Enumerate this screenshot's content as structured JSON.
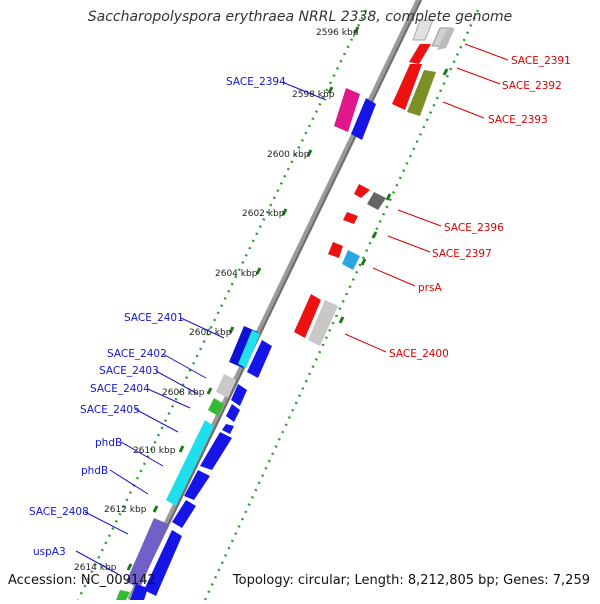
{
  "title": "Saccharopolyspora erythraea NRRL 2338, complete genome",
  "footer": {
    "accession": "Accession: NC_009142",
    "summary": "Topology: circular; Length: 8,212,805 bp; Genes: 7,259"
  },
  "colors": {
    "backbone": "#7a7a7a",
    "dots": "#2e9e2e",
    "label_right": "#dd0000",
    "label_left": "#1414c8"
  },
  "ticks": [
    "2596 kbp",
    "2598 kbp",
    "2600 kbp",
    "2602 kbp",
    "2604 kbp",
    "2606 kbp",
    "2608 kbp",
    "2610 kbp",
    "2612 kbp",
    "2614 kbp"
  ],
  "right_labels": [
    "SACE_2391",
    "SACE_2392",
    "SACE_2393",
    "SACE_2396",
    "SACE_2397",
    "prsA",
    "SACE_2400"
  ],
  "left_labels": [
    "SACE_2394",
    "SACE_2401",
    "SACE_2402",
    "SACE_2403",
    "SACE_2404",
    "SACE_2405",
    "phdB",
    "phdB",
    "SACE_2408",
    "uspA3"
  ]
}
